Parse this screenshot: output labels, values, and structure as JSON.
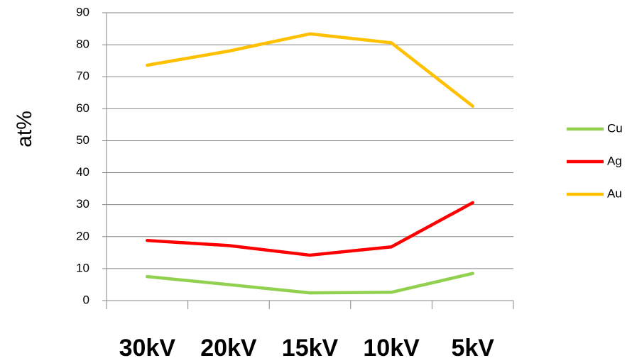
{
  "chart_data": {
    "type": "line",
    "ylabel": "at%",
    "categories": [
      "30kV",
      "20kV",
      "15kV",
      "10kV",
      "5kV"
    ],
    "series": [
      {
        "name": "Cu",
        "color": "#92d050",
        "values": [
          7.5,
          5,
          2.4,
          2.6,
          8.5
        ]
      },
      {
        "name": "Ag",
        "color": "#ff0000",
        "values": [
          18.8,
          17.2,
          14.2,
          16.8,
          30.6
        ]
      },
      {
        "name": "Au",
        "color": "#ffc000",
        "values": [
          73.6,
          78,
          83.4,
          80.6,
          60.8
        ]
      }
    ],
    "ylim": [
      0,
      90
    ],
    "yticks": [
      0,
      10,
      20,
      30,
      40,
      50,
      60,
      70,
      80,
      90
    ],
    "grid": true,
    "legend": "right"
  }
}
